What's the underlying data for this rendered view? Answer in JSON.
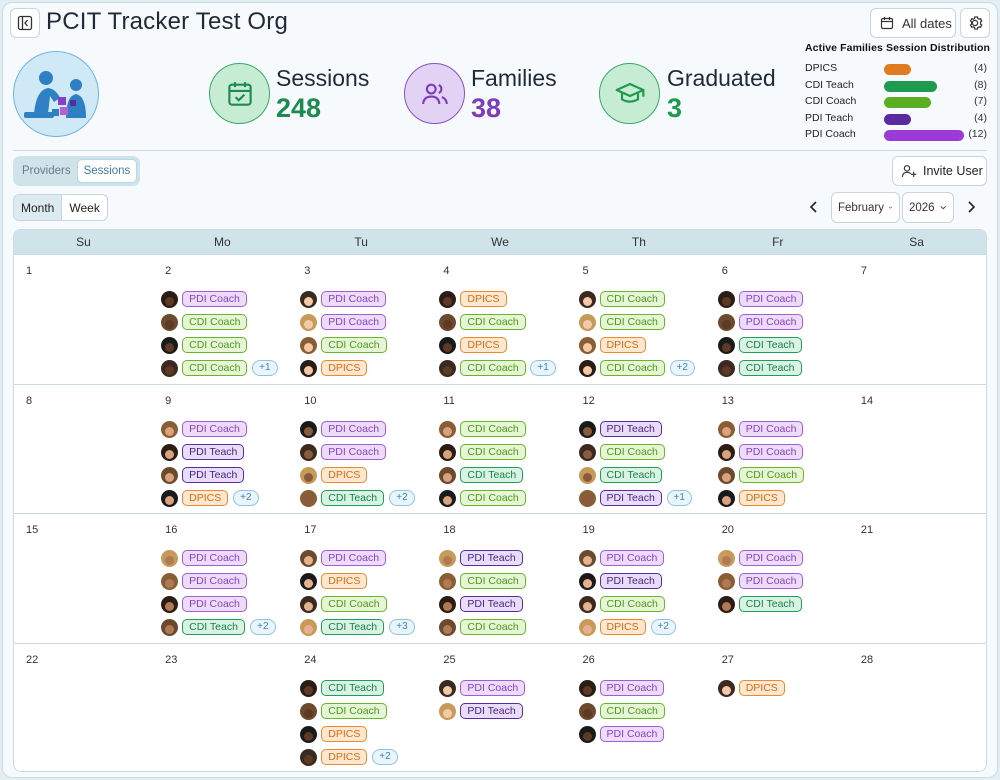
{
  "app": {
    "title": "PCIT Tracker Test Org",
    "all_dates_label": "All dates"
  },
  "stats": {
    "sessions": {
      "label": "Sessions",
      "value": "248",
      "color": "#1e8a4f"
    },
    "families": {
      "label": "Families",
      "value": "38",
      "color": "#7d3cb8"
    },
    "graduated": {
      "label": "Graduated",
      "value": "3",
      "color": "#1e9a4f"
    }
  },
  "distribution": {
    "title": "Active Families Session Distribution",
    "rows": [
      {
        "label": "DPICS",
        "count": "(4)",
        "value": 4,
        "color": "#e07b22"
      },
      {
        "label": "CDI Teach",
        "count": "(8)",
        "value": 8,
        "color": "#1f9b51"
      },
      {
        "label": "CDI Coach",
        "count": "(7)",
        "value": 7,
        "color": "#5aae22"
      },
      {
        "label": "PDI Teach",
        "count": "(4)",
        "value": 4,
        "color": "#5b2a9e"
      },
      {
        "label": "PDI Coach",
        "count": "(12)",
        "value": 12,
        "color": "#9b3ad6"
      }
    ]
  },
  "toggle": {
    "providers": "Providers",
    "sessions": "Sessions"
  },
  "view": {
    "month": "Month",
    "week": "Week"
  },
  "invite_label": "Invite User",
  "month_select": "February",
  "year_select": "2026",
  "weekdays": [
    "Su",
    "Mo",
    "Tu",
    "We",
    "Th",
    "Fr",
    "Sa"
  ],
  "weeks": [
    [
      {
        "day": "1",
        "events": [],
        "more": ""
      },
      {
        "day": "2",
        "events": [
          {
            "t": "PDI Coach",
            "k": "pdi-coach"
          },
          {
            "t": "CDI Coach",
            "k": "cdi-coach"
          },
          {
            "t": "CDI Coach",
            "k": "cdi-coach"
          },
          {
            "t": "CDI Coach",
            "k": "cdi-coach"
          }
        ],
        "more": "+1"
      },
      {
        "day": "3",
        "events": [
          {
            "t": "PDI Coach",
            "k": "pdi-coach"
          },
          {
            "t": "PDI Coach",
            "k": "pdi-coach"
          },
          {
            "t": "CDI Coach",
            "k": "cdi-coach"
          },
          {
            "t": "DPICS",
            "k": "dpics"
          }
        ],
        "more": ""
      },
      {
        "day": "4",
        "events": [
          {
            "t": "DPICS",
            "k": "dpics"
          },
          {
            "t": "CDI Coach",
            "k": "cdi-coach"
          },
          {
            "t": "DPICS",
            "k": "dpics"
          },
          {
            "t": "CDI Coach",
            "k": "cdi-coach"
          }
        ],
        "more": "+1"
      },
      {
        "day": "5",
        "events": [
          {
            "t": "CDI Coach",
            "k": "cdi-coach"
          },
          {
            "t": "CDI Coach",
            "k": "cdi-coach"
          },
          {
            "t": "DPICS",
            "k": "dpics"
          },
          {
            "t": "CDI Coach",
            "k": "cdi-coach"
          }
        ],
        "more": "+2"
      },
      {
        "day": "6",
        "events": [
          {
            "t": "PDI Coach",
            "k": "pdi-coach"
          },
          {
            "t": "PDI Coach",
            "k": "pdi-coach"
          },
          {
            "t": "CDI Teach",
            "k": "cdi-teach"
          },
          {
            "t": "CDI Teach",
            "k": "cdi-teach"
          }
        ],
        "more": ""
      },
      {
        "day": "7",
        "events": [],
        "more": ""
      }
    ],
    [
      {
        "day": "8",
        "events": [],
        "more": ""
      },
      {
        "day": "9",
        "events": [
          {
            "t": "PDI Coach",
            "k": "pdi-coach"
          },
          {
            "t": "PDI Teach",
            "k": "pdi-teach"
          },
          {
            "t": "PDI Teach",
            "k": "pdi-teach"
          },
          {
            "t": "DPICS",
            "k": "dpics"
          }
        ],
        "more": "+2"
      },
      {
        "day": "10",
        "events": [
          {
            "t": "PDI Coach",
            "k": "pdi-coach"
          },
          {
            "t": "PDI Coach",
            "k": "pdi-coach"
          },
          {
            "t": "DPICS",
            "k": "dpics"
          },
          {
            "t": "CDI Teach",
            "k": "cdi-teach"
          }
        ],
        "more": "+2"
      },
      {
        "day": "11",
        "events": [
          {
            "t": "CDI Coach",
            "k": "cdi-coach"
          },
          {
            "t": "CDI Coach",
            "k": "cdi-coach"
          },
          {
            "t": "CDI Teach",
            "k": "cdi-teach"
          },
          {
            "t": "CDI Coach",
            "k": "cdi-coach"
          }
        ],
        "more": ""
      },
      {
        "day": "12",
        "events": [
          {
            "t": "PDI Teach",
            "k": "pdi-teach"
          },
          {
            "t": "CDI Coach",
            "k": "cdi-coach"
          },
          {
            "t": "CDI Teach",
            "k": "cdi-teach"
          },
          {
            "t": "PDI Teach",
            "k": "pdi-teach"
          }
        ],
        "more": "+1"
      },
      {
        "day": "13",
        "events": [
          {
            "t": "PDI Coach",
            "k": "pdi-coach"
          },
          {
            "t": "PDI Coach",
            "k": "pdi-coach"
          },
          {
            "t": "CDI Coach",
            "k": "cdi-coach"
          },
          {
            "t": "DPICS",
            "k": "dpics"
          }
        ],
        "more": ""
      },
      {
        "day": "14",
        "events": [],
        "more": ""
      }
    ],
    [
      {
        "day": "15",
        "events": [],
        "more": ""
      },
      {
        "day": "16",
        "events": [
          {
            "t": "PDI Coach",
            "k": "pdi-coach"
          },
          {
            "t": "PDI Coach",
            "k": "pdi-coach"
          },
          {
            "t": "PDI Coach",
            "k": "pdi-coach"
          },
          {
            "t": "CDI Teach",
            "k": "cdi-teach"
          }
        ],
        "more": "+2"
      },
      {
        "day": "17",
        "events": [
          {
            "t": "PDI Coach",
            "k": "pdi-coach"
          },
          {
            "t": "DPICS",
            "k": "dpics"
          },
          {
            "t": "CDI Coach",
            "k": "cdi-coach"
          },
          {
            "t": "CDI Teach",
            "k": "cdi-teach"
          }
        ],
        "more": "+3"
      },
      {
        "day": "18",
        "events": [
          {
            "t": "PDI Teach",
            "k": "pdi-teach"
          },
          {
            "t": "CDI Coach",
            "k": "cdi-coach"
          },
          {
            "t": "PDI Teach",
            "k": "pdi-teach"
          },
          {
            "t": "CDI Coach",
            "k": "cdi-coach"
          }
        ],
        "more": ""
      },
      {
        "day": "19",
        "events": [
          {
            "t": "PDI Coach",
            "k": "pdi-coach"
          },
          {
            "t": "PDI Teach",
            "k": "pdi-teach"
          },
          {
            "t": "CDI Coach",
            "k": "cdi-coach"
          },
          {
            "t": "DPICS",
            "k": "dpics"
          }
        ],
        "more": "+2"
      },
      {
        "day": "20",
        "events": [
          {
            "t": "PDI Coach",
            "k": "pdi-coach"
          },
          {
            "t": "PDI Coach",
            "k": "pdi-coach"
          },
          {
            "t": "CDI Teach",
            "k": "cdi-teach"
          }
        ],
        "more": ""
      },
      {
        "day": "21",
        "events": [],
        "more": ""
      }
    ],
    [
      {
        "day": "22",
        "events": [],
        "more": ""
      },
      {
        "day": "23",
        "events": [],
        "more": ""
      },
      {
        "day": "24",
        "events": [
          {
            "t": "CDI Teach",
            "k": "cdi-teach"
          },
          {
            "t": "CDI Coach",
            "k": "cdi-coach"
          },
          {
            "t": "DPICS",
            "k": "dpics"
          },
          {
            "t": "DPICS",
            "k": "dpics"
          }
        ],
        "more": "+2"
      },
      {
        "day": "25",
        "events": [
          {
            "t": "PDI Coach",
            "k": "pdi-coach"
          },
          {
            "t": "PDI Teach",
            "k": "pdi-teach"
          }
        ],
        "more": ""
      },
      {
        "day": "26",
        "events": [
          {
            "t": "PDI Coach",
            "k": "pdi-coach"
          },
          {
            "t": "CDI Coach",
            "k": "cdi-coach"
          },
          {
            "t": "PDI Coach",
            "k": "pdi-coach"
          }
        ],
        "more": ""
      },
      {
        "day": "27",
        "events": [
          {
            "t": "DPICS",
            "k": "dpics"
          }
        ],
        "more": ""
      },
      {
        "day": "28",
        "events": [],
        "more": ""
      }
    ]
  ]
}
